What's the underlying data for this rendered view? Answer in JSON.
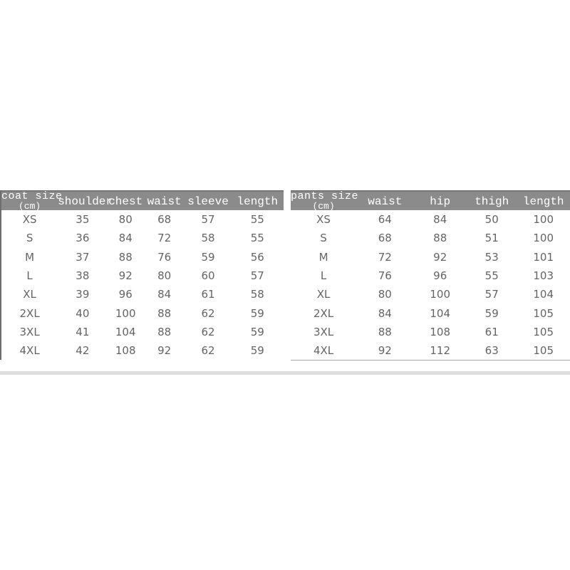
{
  "colors": {
    "page_background": "#ffffff",
    "header_background": "#8b8b8b",
    "header_text": "#ffffff",
    "body_text": "#646464",
    "coat_table_left_border": "#6e6e6e",
    "pants_table_bottom_rule": "#a8a8a8",
    "seam_band": "#dedede"
  },
  "chart_data": [
    {
      "type": "table",
      "title": "coat size",
      "unit": "(cm)",
      "columns": [
        "shoulder",
        "chest",
        "waist",
        "sleeve",
        "length"
      ],
      "rows": [
        {
          "size": "XS",
          "values": [
            35,
            80,
            68,
            57,
            55
          ]
        },
        {
          "size": "S",
          "values": [
            36,
            84,
            72,
            58,
            55
          ]
        },
        {
          "size": "M",
          "values": [
            37,
            88,
            76,
            59,
            56
          ]
        },
        {
          "size": "L",
          "values": [
            38,
            92,
            80,
            60,
            57
          ]
        },
        {
          "size": "XL",
          "values": [
            39,
            96,
            84,
            61,
            58
          ]
        },
        {
          "size": "2XL",
          "values": [
            40,
            100,
            88,
            62,
            59
          ]
        },
        {
          "size": "3XL",
          "values": [
            41,
            104,
            88,
            62,
            59
          ]
        },
        {
          "size": "4XL",
          "values": [
            42,
            108,
            92,
            62,
            59
          ]
        }
      ]
    },
    {
      "type": "table",
      "title": "pants size",
      "unit": "(cm)",
      "columns": [
        "waist",
        "hip",
        "thigh",
        "length"
      ],
      "rows": [
        {
          "size": "XS",
          "values": [
            64,
            84,
            50,
            100
          ]
        },
        {
          "size": "S",
          "values": [
            68,
            88,
            51,
            100
          ]
        },
        {
          "size": "M",
          "values": [
            72,
            92,
            53,
            101
          ]
        },
        {
          "size": "L",
          "values": [
            76,
            96,
            55,
            103
          ]
        },
        {
          "size": "XL",
          "values": [
            80,
            100,
            57,
            104
          ]
        },
        {
          "size": "2XL",
          "values": [
            84,
            104,
            59,
            105
          ]
        },
        {
          "size": "3XL",
          "values": [
            88,
            108,
            61,
            105
          ]
        },
        {
          "size": "4XL",
          "values": [
            92,
            112,
            63,
            105
          ]
        }
      ]
    }
  ]
}
